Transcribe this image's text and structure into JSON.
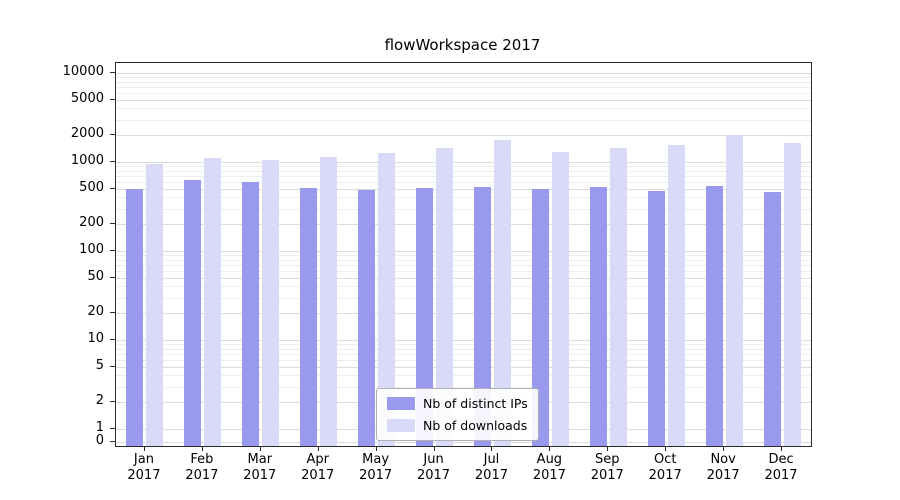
{
  "chart_data": {
    "type": "bar",
    "title": "flowWorkspace 2017",
    "categories": [
      "Jan",
      "Feb",
      "Mar",
      "Apr",
      "May",
      "Jun",
      "Jul",
      "Aug",
      "Sep",
      "Oct",
      "Nov",
      "Dec"
    ],
    "year_label": "2017",
    "series": [
      {
        "name": "Nb of distinct IPs",
        "color": "#9999ee",
        "values": [
          500,
          620,
          590,
          510,
          480,
          510,
          530,
          500,
          520,
          470,
          540,
          460
        ]
      },
      {
        "name": "Nb of downloads",
        "color": "#d9d9f8",
        "values": [
          950,
          1100,
          1050,
          1150,
          1250,
          1450,
          1750,
          1300,
          1450,
          1550,
          2000,
          1650
        ]
      }
    ],
    "y_scale": "symlog",
    "y_ticks": [
      10000,
      5000,
      2000,
      1000,
      500,
      200,
      100,
      50,
      20,
      10,
      5,
      2,
      1,
      0
    ],
    "ylim": [
      0,
      13000
    ],
    "grid": true,
    "legend_position": "inside lower center"
  }
}
